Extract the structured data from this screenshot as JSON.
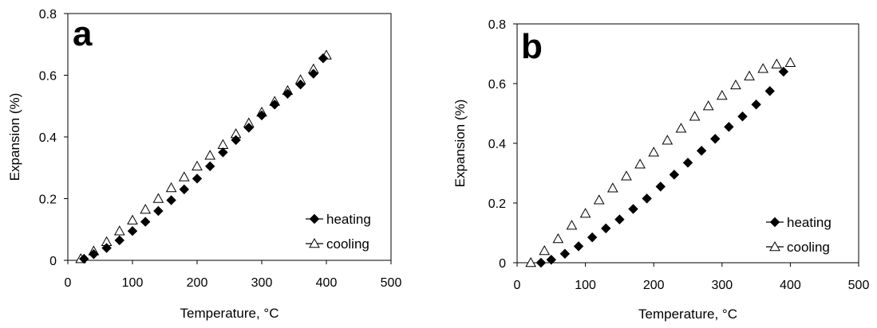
{
  "chart_data": [
    {
      "type": "scatter",
      "panel_label": "a",
      "xlabel": "Temperature, °C",
      "ylabel": "Expansion (%)",
      "xlim": [
        0,
        500
      ],
      "ylim": [
        0,
        0.8
      ],
      "xticks": [
        "0",
        "100",
        "200",
        "300",
        "400",
        "500"
      ],
      "yticks": [
        "0",
        "0.2",
        "0.4",
        "0.6",
        "0.8"
      ],
      "grid": false,
      "legend_position": "bottom-right",
      "series": [
        {
          "name": "heating",
          "marker": "filled-diamond",
          "x": [
            25,
            40,
            60,
            80,
            100,
            120,
            140,
            160,
            180,
            200,
            220,
            240,
            260,
            280,
            300,
            320,
            340,
            360,
            380,
            395
          ],
          "y": [
            0.005,
            0.02,
            0.04,
            0.065,
            0.095,
            0.125,
            0.16,
            0.195,
            0.23,
            0.265,
            0.305,
            0.35,
            0.39,
            0.43,
            0.47,
            0.505,
            0.54,
            0.57,
            0.605,
            0.655
          ]
        },
        {
          "name": "cooling",
          "marker": "open-triangle",
          "x": [
            20,
            40,
            60,
            80,
            100,
            120,
            140,
            160,
            180,
            200,
            220,
            240,
            260,
            280,
            300,
            320,
            340,
            360,
            380,
            400
          ],
          "y": [
            0.005,
            0.03,
            0.06,
            0.095,
            0.13,
            0.165,
            0.2,
            0.235,
            0.27,
            0.305,
            0.34,
            0.375,
            0.41,
            0.445,
            0.48,
            0.515,
            0.55,
            0.585,
            0.62,
            0.665
          ]
        }
      ]
    },
    {
      "type": "scatter",
      "panel_label": "b",
      "xlabel": "Temperature, °C",
      "ylabel": "Expansion (%)",
      "xlim": [
        0,
        500
      ],
      "ylim": [
        0,
        0.8
      ],
      "xticks": [
        "0",
        "100",
        "200",
        "300",
        "400",
        "500"
      ],
      "yticks": [
        "0",
        "0.2",
        "0.4",
        "0.6",
        "0.8"
      ],
      "grid": false,
      "legend_position": "bottom-right",
      "series": [
        {
          "name": "heating",
          "marker": "filled-diamond",
          "x": [
            35,
            50,
            70,
            90,
            110,
            130,
            150,
            170,
            190,
            210,
            230,
            250,
            270,
            290,
            310,
            330,
            350,
            370,
            390
          ],
          "y": [
            0.0,
            0.01,
            0.03,
            0.055,
            0.085,
            0.115,
            0.145,
            0.18,
            0.215,
            0.255,
            0.295,
            0.335,
            0.375,
            0.415,
            0.455,
            0.49,
            0.53,
            0.575,
            0.64
          ]
        },
        {
          "name": "cooling",
          "marker": "open-triangle",
          "x": [
            20,
            40,
            60,
            80,
            100,
            120,
            140,
            160,
            180,
            200,
            220,
            240,
            260,
            280,
            300,
            320,
            340,
            360,
            380,
            400
          ],
          "y": [
            0.0,
            0.04,
            0.08,
            0.125,
            0.165,
            0.21,
            0.25,
            0.29,
            0.33,
            0.37,
            0.41,
            0.45,
            0.49,
            0.525,
            0.56,
            0.595,
            0.625,
            0.65,
            0.665,
            0.67
          ]
        }
      ]
    }
  ]
}
